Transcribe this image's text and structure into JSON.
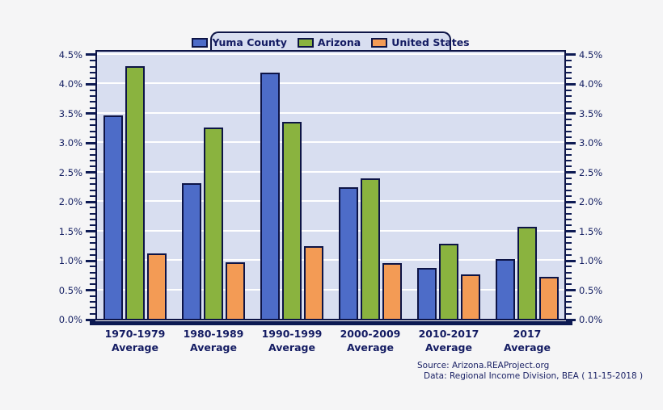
{
  "chart_data": {
    "type": "bar",
    "title": "",
    "xlabel": "",
    "ylabel": "",
    "categories": [
      {
        "line1": "1970-1979",
        "line2": "Average"
      },
      {
        "line1": "1980-1989",
        "line2": "Average"
      },
      {
        "line1": "1990-1999",
        "line2": "Average"
      },
      {
        "line1": "2000-2009",
        "line2": "Average"
      },
      {
        "line1": "2010-2017",
        "line2": "Average"
      },
      {
        "line1": "2017",
        "line2": "Average"
      }
    ],
    "series": [
      {
        "name": "Yuma County",
        "color": "#4d6cc8",
        "values": [
          3.46,
          2.3,
          4.19,
          2.23,
          0.87,
          1.02
        ]
      },
      {
        "name": "Arizona",
        "color": "#8ab33f",
        "values": [
          4.3,
          3.25,
          3.35,
          2.38,
          1.28,
          1.57
        ]
      },
      {
        "name": "United States",
        "color": "#f39b55",
        "values": [
          1.11,
          0.96,
          1.24,
          0.95,
          0.76,
          0.72
        ]
      }
    ],
    "ylim": [
      0.0,
      4.5
    ],
    "y_major_step": 0.5,
    "y_minor_step": 0.1,
    "y_tick_labels": [
      "0.0%",
      "0.5%",
      "1.0%",
      "1.5%",
      "2.0%",
      "2.5%",
      "3.0%",
      "3.5%",
      "4.0%",
      "4.5%"
    ],
    "y_axis_sides": "both",
    "grid": {
      "horizontal": true,
      "color": "#ffffff",
      "step": 0.5
    },
    "legend_position": "top-center"
  },
  "source": {
    "line1": "Source: Arizona.REAProject.org",
    "line2": "Data: Regional Income Division, BEA ( 11-15-2018 )"
  },
  "colors": {
    "page_background": "#f5f5f6",
    "plot_background": "#d8def0",
    "axis_navy": "#0d1a53",
    "text_navy": "#131b62",
    "gridline": "#ffffff"
  }
}
